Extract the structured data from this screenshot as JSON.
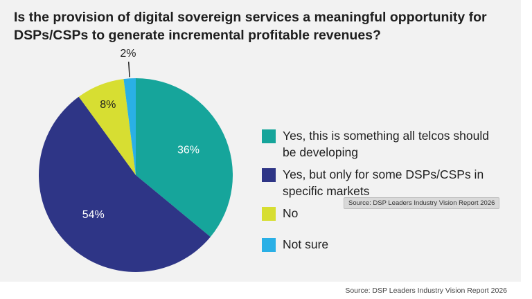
{
  "title": "Is the provision of digital sovereign services a meaningful opportunity for DSPs/CSPs to generate incremental profitable revenues?",
  "chart_data": {
    "type": "pie",
    "title": "Is the provision of digital sovereign services a meaningful opportunity for DSPs/CSPs to generate incremental profitable revenues?",
    "slices": [
      {
        "label": "Yes, this is something all telcos should be developing",
        "value": 36,
        "display": "36%",
        "color": "#16a59b"
      },
      {
        "label": "Yes, but only for some DSPs/CSPs in specific markets",
        "value": 54,
        "display": "54%",
        "color": "#2e3586"
      },
      {
        "label": "No",
        "value": 8,
        "display": "8%",
        "color": "#d7de32"
      },
      {
        "label": "Not sure",
        "value": 2,
        "display": "2%",
        "color": "#2ab0e6"
      }
    ],
    "legend_position": "right"
  },
  "tooltip_text": "Source: DSP Leaders Industry Vision Report 2026",
  "source_text": "Source: DSP Leaders Industry Vision Report 2026"
}
